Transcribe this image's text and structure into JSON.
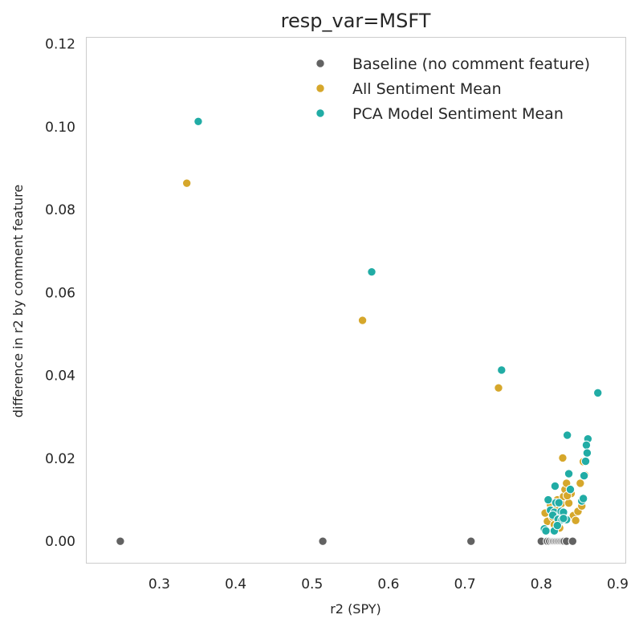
{
  "chart_data": {
    "type": "scatter",
    "title": "resp_var=MSFT",
    "xlabel": "r2 (SPY)",
    "ylabel": "difference in r2 by comment feature",
    "xlim": [
      0.205,
      0.91
    ],
    "ylim": [
      -0.0052,
      0.1215
    ],
    "xticks": [
      0.3,
      0.4,
      0.5,
      0.6,
      0.7,
      0.8,
      0.9
    ],
    "xtick_labels": [
      "0.3",
      "0.4",
      "0.5",
      "0.6",
      "0.7",
      "0.8",
      "0.9"
    ],
    "yticks": [
      0.0,
      0.02,
      0.04,
      0.06,
      0.08,
      0.1,
      0.12
    ],
    "ytick_labels": [
      "0.00",
      "0.02",
      "0.04",
      "0.06",
      "0.08",
      "0.10",
      "0.12"
    ],
    "grid": true,
    "legend_position": "top-right",
    "series": [
      {
        "name": "Baseline (no comment feature)",
        "color": "#626262",
        "points": [
          [
            0.249,
            0.0
          ],
          [
            0.514,
            0.0
          ],
          [
            0.708,
            0.0
          ],
          [
            0.8,
            0.0
          ],
          [
            0.808,
            0.0
          ],
          [
            0.811,
            0.0
          ],
          [
            0.814,
            0.0
          ],
          [
            0.816,
            0.0
          ],
          [
            0.818,
            0.0
          ],
          [
            0.82,
            0.0
          ],
          [
            0.822,
            0.0
          ],
          [
            0.824,
            0.0
          ],
          [
            0.826,
            0.0
          ],
          [
            0.828,
            0.0
          ],
          [
            0.83,
            0.0
          ],
          [
            0.833,
            0.0
          ],
          [
            0.841,
            0.0
          ]
        ]
      },
      {
        "name": "All Sentiment Mean",
        "color": "#d6a72b",
        "points": [
          [
            0.336,
            0.0864
          ],
          [
            0.566,
            0.0533
          ],
          [
            0.744,
            0.037
          ],
          [
            0.828,
            0.0201
          ],
          [
            0.805,
            0.0068
          ],
          [
            0.808,
            0.0048
          ],
          [
            0.812,
            0.0088
          ],
          [
            0.815,
            0.0058
          ],
          [
            0.818,
            0.0078
          ],
          [
            0.821,
            0.01
          ],
          [
            0.823,
            0.0068
          ],
          [
            0.826,
            0.009
          ],
          [
            0.829,
            0.0108
          ],
          [
            0.831,
            0.0125
          ],
          [
            0.833,
            0.014
          ],
          [
            0.836,
            0.0092
          ],
          [
            0.839,
            0.0115
          ],
          [
            0.842,
            0.0062
          ],
          [
            0.845,
            0.005
          ],
          [
            0.848,
            0.0072
          ],
          [
            0.851,
            0.014
          ],
          [
            0.853,
            0.0085
          ],
          [
            0.855,
            0.0192
          ],
          [
            0.857,
            0.016
          ],
          [
            0.817,
            0.004
          ],
          [
            0.824,
            0.0032
          ],
          [
            0.834,
            0.011
          ]
        ]
      },
      {
        "name": "PCA Model Sentiment Mean",
        "color": "#21aca5",
        "points": [
          [
            0.351,
            0.1013
          ],
          [
            0.578,
            0.065
          ],
          [
            0.748,
            0.0413
          ],
          [
            0.874,
            0.0358
          ],
          [
            0.834,
            0.0256
          ],
          [
            0.861,
            0.0247
          ],
          [
            0.859,
            0.0232
          ],
          [
            0.86,
            0.0213
          ],
          [
            0.858,
            0.0193
          ],
          [
            0.856,
            0.0158
          ],
          [
            0.836,
            0.0163
          ],
          [
            0.818,
            0.0133
          ],
          [
            0.838,
            0.0125
          ],
          [
            0.809,
            0.01
          ],
          [
            0.819,
            0.0093
          ],
          [
            0.823,
            0.0093
          ],
          [
            0.853,
            0.0097
          ],
          [
            0.855,
            0.0103
          ],
          [
            0.812,
            0.0075
          ],
          [
            0.817,
            0.007
          ],
          [
            0.826,
            0.0072
          ],
          [
            0.829,
            0.007
          ],
          [
            0.815,
            0.0063
          ],
          [
            0.822,
            0.0053
          ],
          [
            0.827,
            0.0052
          ],
          [
            0.833,
            0.0052
          ],
          [
            0.804,
            0.003
          ],
          [
            0.806,
            0.0025
          ],
          [
            0.817,
            0.0025
          ],
          [
            0.821,
            0.0038
          ],
          [
            0.829,
            0.0055
          ]
        ]
      }
    ]
  }
}
